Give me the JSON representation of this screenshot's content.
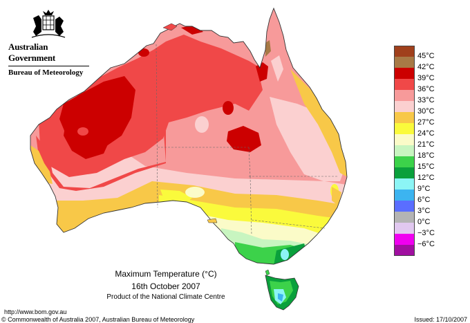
{
  "header": {
    "government": "Australian Government",
    "bureau": "Bureau of Meteorology"
  },
  "legend": [
    {
      "label": "45°C",
      "color": "#a0401c"
    },
    {
      "label": "42°C",
      "color": "#a87a46"
    },
    {
      "label": "39°C",
      "color": "#cc0000"
    },
    {
      "label": "36°C",
      "color": "#f04848"
    },
    {
      "label": "33°C",
      "color": "#f79a9a"
    },
    {
      "label": "30°C",
      "color": "#fbd0d0"
    },
    {
      "label": "27°C",
      "color": "#f8c848"
    },
    {
      "label": "24°C",
      "color": "#fafa3c"
    },
    {
      "label": "21°C",
      "color": "#fbfbc8"
    },
    {
      "label": "18°C",
      "color": "#c8f5c0"
    },
    {
      "label": "15°C",
      "color": "#3cd24a"
    },
    {
      "label": "12°C",
      "color": "#0aa03c"
    },
    {
      "label": "9°C",
      "color": "#8cf5f5"
    },
    {
      "label": "6°C",
      "color": "#3cb4f0"
    },
    {
      "label": "3°C",
      "color": "#5a6eff"
    },
    {
      "label": "0°C",
      "color": "#b4b4b4"
    },
    {
      "label": "−3°C",
      "color": "#e1c8f0"
    },
    {
      "label": "−6°C",
      "color": "#f000f0"
    },
    {
      "label": "",
      "color": "#a00fa0"
    }
  ],
  "caption": {
    "title": "Maximum Temperature (°C)",
    "date": "16th October 2007",
    "subtitle": "Product of the National Climate Centre"
  },
  "footer": {
    "url": "http://www.bom.gov.au",
    "copyright": "© Commonwealth of Australia 2007, Australian Bureau of Meteorology",
    "issued": "Issued: 17/10/2007"
  }
}
